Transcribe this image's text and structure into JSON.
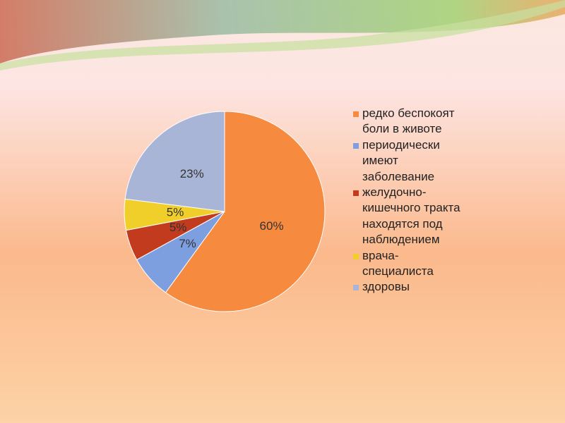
{
  "chart_data": {
    "type": "pie",
    "categories": [
      "редко беспокоят боли в животе",
      "периодически имеют заболевание",
      "желудочно-кишечного тракта находятся под наблюдением",
      "врача-специалиста",
      "здоровы"
    ],
    "values": [
      60,
      7,
      5,
      5,
      23
    ],
    "value_labels": [
      "60%",
      "7%",
      "5%",
      "5%",
      "23%"
    ],
    "colors": [
      "#f68a3e",
      "#7d9fdf",
      "#c23b1f",
      "#f1cf2b",
      "#a9b5d6"
    ],
    "legend": "right"
  }
}
